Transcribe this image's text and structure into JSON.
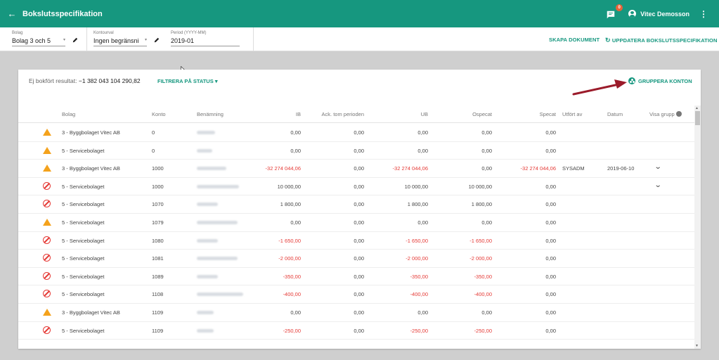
{
  "header": {
    "back_icon": "arrow-left-icon",
    "title": "Bokslutsspecifikation",
    "notification_count": "0",
    "user_name": "Vitec Demosson"
  },
  "filters": {
    "bolag_label": "Bolag",
    "bolag_value": "Bolag 3 och 5",
    "kontourval_label": "Kontourval",
    "kontourval_value": "Ingen begränsni",
    "period_label": "Period (YYYY-MM)",
    "period_value": "2019-01",
    "skapa_label": "SKAPA DOKUMENT",
    "uppdatera_label": "UPPDATERA BOKSLUTSSPECIFIKATION"
  },
  "card": {
    "summary_label": "Ej bokfört resultat:",
    "summary_value": "−1 382 043 104 290,82",
    "filter_status_label": "FILTRERA PÅ STATUS",
    "group_label": "GRUPPERA KONTON"
  },
  "table": {
    "columns": [
      "Bolag",
      "Konto",
      "Benämning",
      "IB",
      "Ack. tom perioden",
      "UB",
      "Ospecat",
      "Specat",
      "Utfört av",
      "Datum",
      "Visa grupp"
    ],
    "rows": [
      {
        "status": "warning",
        "bolag": "3 - Byggbolaget Vitec AB",
        "konto": "0",
        "ib": "0,00",
        "ack": "0,00",
        "ub": "0,00",
        "ospecat": "0,00",
        "specat": "0,00",
        "utfort": "",
        "datum": "",
        "expand": false
      },
      {
        "status": "warning",
        "bolag": "5 - Servicebolaget",
        "konto": "0",
        "ib": "0,00",
        "ack": "0,00",
        "ub": "0,00",
        "ospecat": "0,00",
        "specat": "0,00",
        "utfort": "",
        "datum": "",
        "expand": false
      },
      {
        "status": "warning",
        "bolag": "3 - Byggbolaget Vitec AB",
        "konto": "1000",
        "ib": "-32 274 044,06",
        "ack": "0,00",
        "ub": "-32 274 044,06",
        "ospecat": "0,00",
        "specat": "-32 274 044,06",
        "utfort": "SYSADM",
        "datum": "2019-06-10",
        "expand": true
      },
      {
        "status": "error",
        "bolag": "5 - Servicebolaget",
        "konto": "1000",
        "ib": "10 000,00",
        "ack": "0,00",
        "ub": "10 000,00",
        "ospecat": "10 000,00",
        "specat": "0,00",
        "utfort": "",
        "datum": "",
        "expand": true
      },
      {
        "status": "error",
        "bolag": "5 - Servicebolaget",
        "konto": "1070",
        "ib": "1 800,00",
        "ack": "0,00",
        "ub": "1 800,00",
        "ospecat": "1 800,00",
        "specat": "0,00",
        "utfort": "",
        "datum": "",
        "expand": false
      },
      {
        "status": "warning",
        "bolag": "5 - Servicebolaget",
        "konto": "1079",
        "ib": "0,00",
        "ack": "0,00",
        "ub": "0,00",
        "ospecat": "0,00",
        "specat": "0,00",
        "utfort": "",
        "datum": "",
        "expand": false
      },
      {
        "status": "error",
        "bolag": "5 - Servicebolaget",
        "konto": "1080",
        "ib": "-1 650,00",
        "ack": "0,00",
        "ub": "-1 650,00",
        "ospecat": "-1 650,00",
        "specat": "0,00",
        "utfort": "",
        "datum": "",
        "expand": false
      },
      {
        "status": "error",
        "bolag": "5 - Servicebolaget",
        "konto": "1081",
        "ib": "-2 000,00",
        "ack": "0,00",
        "ub": "-2 000,00",
        "ospecat": "-2 000,00",
        "specat": "0,00",
        "utfort": "",
        "datum": "",
        "expand": false
      },
      {
        "status": "error",
        "bolag": "5 - Servicebolaget",
        "konto": "1089",
        "ib": "-350,00",
        "ack": "0,00",
        "ub": "-350,00",
        "ospecat": "-350,00",
        "specat": "0,00",
        "utfort": "",
        "datum": "",
        "expand": false
      },
      {
        "status": "error",
        "bolag": "5 - Servicebolaget",
        "konto": "1108",
        "ib": "-400,00",
        "ack": "0,00",
        "ub": "-400,00",
        "ospecat": "-400,00",
        "specat": "0,00",
        "utfort": "",
        "datum": "",
        "expand": false
      },
      {
        "status": "warning",
        "bolag": "3 - Byggbolaget Vitec AB",
        "konto": "1109",
        "ib": "0,00",
        "ack": "0,00",
        "ub": "0,00",
        "ospecat": "0,00",
        "specat": "0,00",
        "utfort": "",
        "datum": "",
        "expand": false
      },
      {
        "status": "error",
        "bolag": "5 - Servicebolaget",
        "konto": "1109",
        "ib": "-250,00",
        "ack": "0,00",
        "ub": "-250,00",
        "ospecat": "-250,00",
        "specat": "0,00",
        "utfort": "",
        "datum": "",
        "expand": false
      }
    ]
  },
  "colors": {
    "accent": "#16977f",
    "negative": "#e53935",
    "warning": "#f4a21c",
    "annotation_arrow": "#9b1b2a"
  }
}
